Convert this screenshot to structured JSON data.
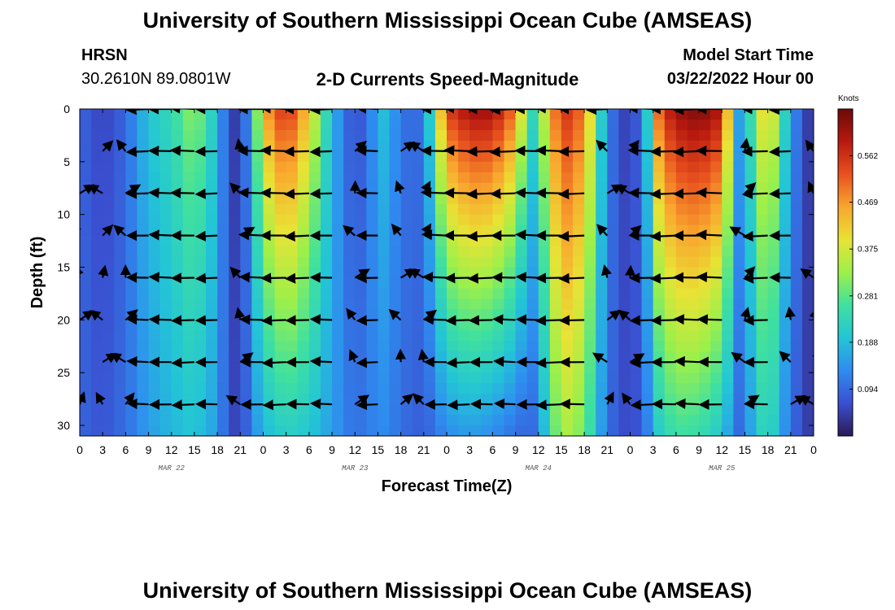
{
  "title": "University of Southern Mississippi Ocean Cube (AMSEAS)",
  "title_repeat": "University of Southern Mississippi Ocean Cube (AMSEAS)",
  "station": {
    "name": "HRSN",
    "coords": "30.2610N  89.0801W"
  },
  "subtitle": "2-D Currents Speed-Magnitude",
  "model": {
    "label": "Model Start Time",
    "value": "03/22/2022 Hour 00"
  },
  "colors": {
    "colormap": [
      "#2b1a55",
      "#3a4fd0",
      "#2f8cf0",
      "#23c5d6",
      "#3fe0a0",
      "#9cf04a",
      "#e8e335",
      "#f9a62e",
      "#e8521e",
      "#b8190f",
      "#6b0a08"
    ]
  },
  "chart_data": {
    "type": "heatmap",
    "xlabel": "Forecast Time(Z)",
    "ylabel": "Depth (ft)",
    "x_range": [
      0,
      96
    ],
    "y_range": [
      0,
      31
    ],
    "x_tick_labels": [
      "0",
      "3",
      "6",
      "9",
      "12",
      "15",
      "18",
      "21",
      "0",
      "3",
      "6",
      "9",
      "12",
      "15",
      "18",
      "21",
      "0",
      "3",
      "6",
      "9",
      "12",
      "15",
      "18",
      "21",
      "0",
      "3",
      "6",
      "9",
      "12",
      "15",
      "18",
      "21",
      "0"
    ],
    "day_labels": [
      {
        "hour": 12,
        "text": "MAR 22"
      },
      {
        "hour": 36,
        "text": "MAR 23"
      },
      {
        "hour": 60,
        "text": "MAR 24"
      },
      {
        "hour": 84,
        "text": "MAR 25"
      }
    ],
    "y_ticks": [
      0,
      5,
      10,
      15,
      20,
      25,
      30
    ],
    "colorbar": {
      "title": "Knots",
      "range": [
        0,
        0.656
      ],
      "ticks": [
        "0.094",
        "0.188",
        "0.281",
        "0.375",
        "0.469",
        "0.562"
      ]
    },
    "speed_profile_hours": [
      0,
      3,
      6,
      9,
      12,
      15,
      18,
      19.5,
      21,
      22.5,
      24,
      27,
      30,
      33,
      36,
      38,
      40,
      42,
      45,
      48,
      51,
      54,
      57,
      59,
      61,
      63,
      66,
      69,
      72,
      74,
      75,
      76,
      78,
      81,
      84,
      86,
      87,
      88,
      90,
      93,
      95,
      96
    ],
    "speed_profile_surface": [
      0.09,
      0.05,
      0.09,
      0.2,
      0.24,
      0.33,
      0.19,
      0.05,
      0.04,
      0.18,
      0.45,
      0.58,
      0.42,
      0.18,
      0.05,
      0.12,
      0.2,
      0.1,
      0.1,
      0.55,
      0.62,
      0.62,
      0.5,
      0.22,
      0.38,
      0.58,
      0.5,
      0.12,
      0.03,
      0.15,
      0.4,
      0.55,
      0.62,
      0.65,
      0.6,
      0.18,
      0.1,
      0.3,
      0.45,
      0.15,
      0.05,
      0.03
    ],
    "speed_profile_bottom": [
      0.09,
      0.07,
      0.1,
      0.15,
      0.18,
      0.2,
      0.15,
      0.06,
      0.05,
      0.12,
      0.18,
      0.22,
      0.2,
      0.15,
      0.1,
      0.12,
      0.13,
      0.1,
      0.08,
      0.13,
      0.15,
      0.13,
      0.1,
      0.08,
      0.2,
      0.35,
      0.3,
      0.1,
      0.05,
      0.1,
      0.18,
      0.22,
      0.26,
      0.25,
      0.2,
      0.1,
      0.09,
      0.18,
      0.25,
      0.1,
      0.05,
      0.03
    ],
    "vector_depths": [
      0,
      4,
      8,
      12,
      16,
      20,
      24,
      28
    ],
    "vector_hours": [
      0,
      3,
      6,
      9,
      12,
      15,
      18,
      21,
      24,
      27,
      30,
      33,
      36,
      39,
      42,
      45,
      48,
      51,
      54,
      57,
      60,
      63,
      66,
      69,
      72,
      75,
      78,
      81,
      84,
      87,
      90,
      93,
      96
    ]
  }
}
